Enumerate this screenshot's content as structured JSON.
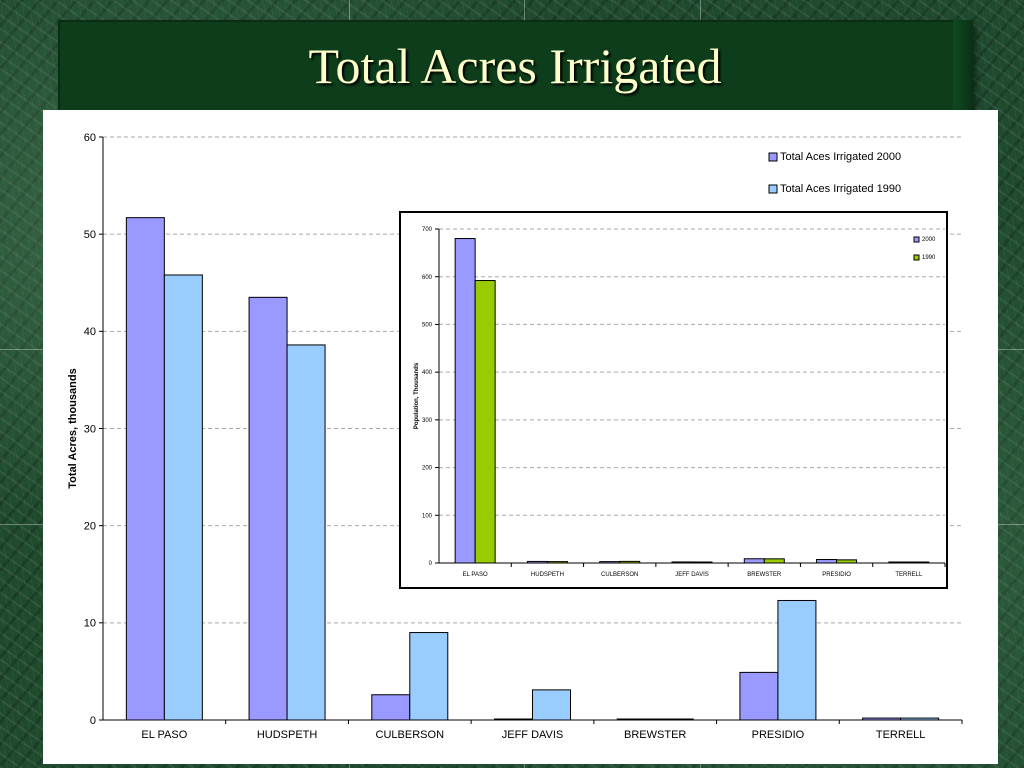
{
  "slide": {
    "title": "Total Acres Irrigated"
  },
  "chart_data": [
    {
      "type": "bar",
      "title": "",
      "xlabel": "",
      "ylabel": "Total Acres, thousands",
      "ylim": [
        0,
        60
      ],
      "yticks": [
        0,
        10,
        20,
        30,
        40,
        50,
        60
      ],
      "categories": [
        "EL PASO",
        "HUDSPETH",
        "CULBERSON",
        "JEFF DAVIS",
        "BREWSTER",
        "PRESIDIO",
        "TERRELL"
      ],
      "series": [
        {
          "name": "Total Aces Irrigated 2000",
          "color": "#9999ff",
          "values": [
            51.7,
            43.5,
            2.6,
            0.1,
            0.1,
            4.9,
            0.2
          ]
        },
        {
          "name": "Total Aces Irrigated 1990",
          "color": "#99ccff",
          "values": [
            45.8,
            38.6,
            9.0,
            3.1,
            0.1,
            12.3,
            0.2
          ]
        }
      ],
      "grid": true,
      "legend_position": "top-right"
    },
    {
      "type": "bar",
      "title": "",
      "xlabel": "",
      "ylabel": "Population, Thousands",
      "ylim": [
        0,
        700
      ],
      "yticks": [
        0,
        100,
        200,
        300,
        400,
        500,
        600,
        700
      ],
      "categories": [
        "EL PASO",
        "HUDSPETH",
        "CULBERSON",
        "JEFF DAVIS",
        "BREWSTER",
        "PRESIDIO",
        "TERRELL"
      ],
      "series": [
        {
          "name": "2000",
          "color": "#9999ff",
          "values": [
            680,
            3.3,
            2.9,
            2.2,
            8.9,
            7.3,
            1.1
          ]
        },
        {
          "name": "1990",
          "color": "#99cc00",
          "values": [
            592,
            2.9,
            3.4,
            1.9,
            8.7,
            6.6,
            1.4
          ]
        }
      ],
      "grid": true,
      "legend_position": "top-right"
    }
  ]
}
